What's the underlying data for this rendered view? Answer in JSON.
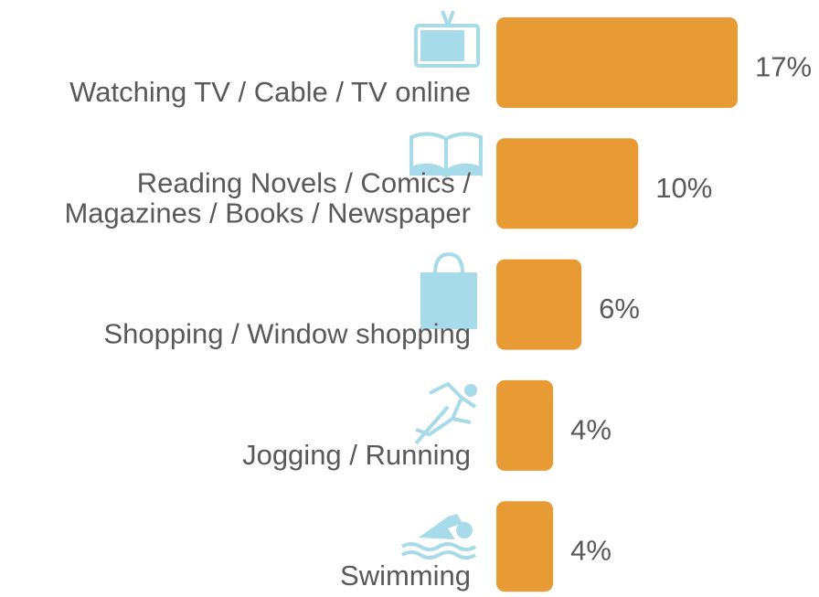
{
  "chart_data": {
    "type": "bar",
    "orientation": "horizontal",
    "categories": [
      "Watching TV / Cable / TV online",
      "Reading Novels / Comics /\nMagazines / Books / Newspaper",
      "Shopping / Window shopping",
      "Jogging / Running",
      "Swimming"
    ],
    "values": [
      17,
      10,
      6,
      4,
      4
    ],
    "value_labels": [
      "17%",
      "10%",
      "6%",
      "4%",
      "4%"
    ],
    "color": "#e89b35"
  }
}
